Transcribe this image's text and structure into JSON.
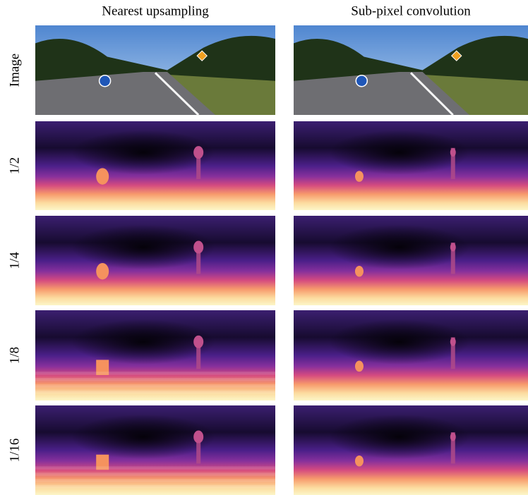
{
  "columns": [
    "Nearest upsampling",
    "Sub-pixel convolution"
  ],
  "rows": [
    "Image",
    "1/2",
    "1/4",
    "1/8",
    "1/16"
  ]
}
